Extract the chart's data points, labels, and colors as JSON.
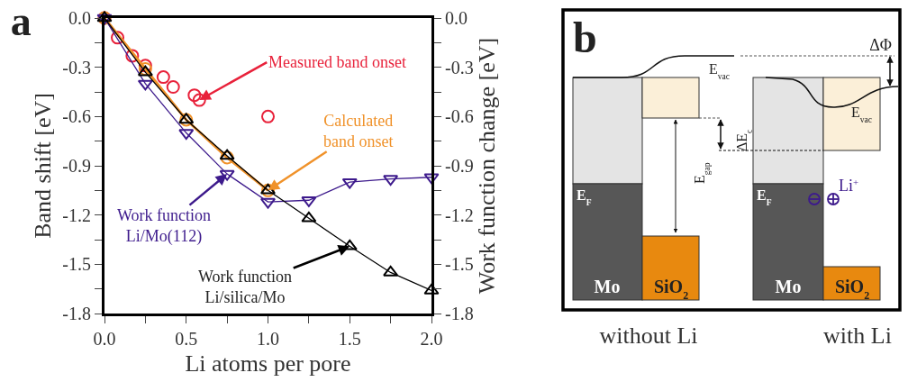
{
  "chart_data": [
    {
      "type": "line",
      "title": "a",
      "xlabel": "Li atoms per pore",
      "ylabel": "Band shift [eV]",
      "y2label": "Work function change [eV]",
      "xlim": [
        0,
        2.0
      ],
      "xticks": [
        {
          "value": 0,
          "label": "0.0"
        },
        {
          "value": 0.25,
          "label": null
        },
        {
          "value": 0.5,
          "label": "0.5"
        },
        {
          "value": 0.75,
          "label": null
        },
        {
          "value": 1.0,
          "label": "1.0"
        },
        {
          "value": 1.25,
          "label": null
        },
        {
          "value": 1.5,
          "label": "1.5"
        },
        {
          "value": 1.75,
          "label": null
        },
        {
          "value": 2.0,
          "label": "2.0"
        }
      ],
      "ylim": [
        -1.8,
        0.0
      ],
      "yticks": [
        {
          "value": 0.0,
          "label": "0.0"
        },
        {
          "value": -0.15,
          "label": null
        },
        -0.3,
        {
          "value": -0.45,
          "label": null
        },
        -0.6,
        {
          "value": -0.75,
          "label": null
        },
        -0.9,
        {
          "value": -1.05,
          "label": null
        },
        -1.2,
        {
          "value": -1.35,
          "label": null
        },
        -1.5,
        {
          "value": -1.65,
          "label": null
        },
        -1.8
      ],
      "y2lim": [
        -1.8,
        0.0
      ],
      "y2ticks": [
        {
          "value": 0.0,
          "label": "0.0"
        },
        {
          "value": -0.15,
          "label": null
        },
        -0.3,
        {
          "value": -0.45,
          "label": null
        },
        -0.6,
        {
          "value": -0.75,
          "label": null
        },
        -0.9,
        {
          "value": -1.05,
          "label": null
        },
        -1.2,
        {
          "value": -1.35,
          "label": null
        },
        -1.5,
        {
          "value": -1.65,
          "label": null
        },
        -1.8
      ],
      "grid": false,
      "series": [
        {
          "type": "scatter",
          "marker": "circle",
          "color": "#e8213a",
          "x": [
            0,
            0.08,
            0.17,
            0.25,
            0.36,
            0.42,
            0.55,
            0.58,
            1.0
          ],
          "values": [
            0,
            -0.12,
            -0.23,
            -0.29,
            -0.36,
            -0.42,
            -0.47,
            -0.5,
            -0.6
          ]
        },
        {
          "type": "line",
          "marker": "circle",
          "color": "#f0922a",
          "x": [
            0,
            0.25,
            0.5,
            0.75,
            1.0
          ],
          "values": [
            0,
            -0.31,
            -0.62,
            -0.85,
            -1.05
          ]
        },
        {
          "type": "line",
          "marker": "triangle-down",
          "color": "#3d1a8c",
          "axis": "y2",
          "x": [
            0,
            0.25,
            0.5,
            0.75,
            1.0,
            1.25,
            1.5,
            1.75,
            2.0
          ],
          "values": [
            0,
            -0.4,
            -0.7,
            -0.95,
            -1.12,
            -1.11,
            -1.0,
            -0.98,
            -0.97
          ]
        },
        {
          "type": "line",
          "marker": "triangle",
          "color": "#000000",
          "axis": "y2",
          "x": [
            0,
            0.25,
            0.5,
            0.75,
            1.0,
            1.25,
            1.5,
            1.75,
            2.0
          ],
          "values": [
            0,
            -0.33,
            -0.62,
            -0.84,
            -1.05,
            -1.22,
            -1.39,
            -1.55,
            -1.66
          ]
        }
      ],
      "annotations": [
        {
          "text": "Measured band onset",
          "x": 0.58,
          "y": -0.5
        },
        {
          "text": "Calculated band onset",
          "x": 1.0,
          "y": -1.05
        },
        {
          "text": "Work function Li/Mo(112)",
          "x": 0.75,
          "y": -0.95
        },
        {
          "text": "Work function Li/silica/Mo",
          "x": 1.5,
          "y": -1.39
        }
      ]
    },
    {
      "type": "other",
      "title": "b",
      "annotations": [
        "E$_{vac}$",
        "ΔΦ",
        "ΔE$_{c}$",
        "E$_{gap}$",
        "E$_{F}$",
        "Mo",
        "SiO$_{2}$",
        "E$_{vac}$",
        "E$_{F}$",
        "Li$^{+}$",
        "Mo",
        "SiO$_{2}$",
        "without Li",
        "with Li"
      ]
    }
  ]
}
